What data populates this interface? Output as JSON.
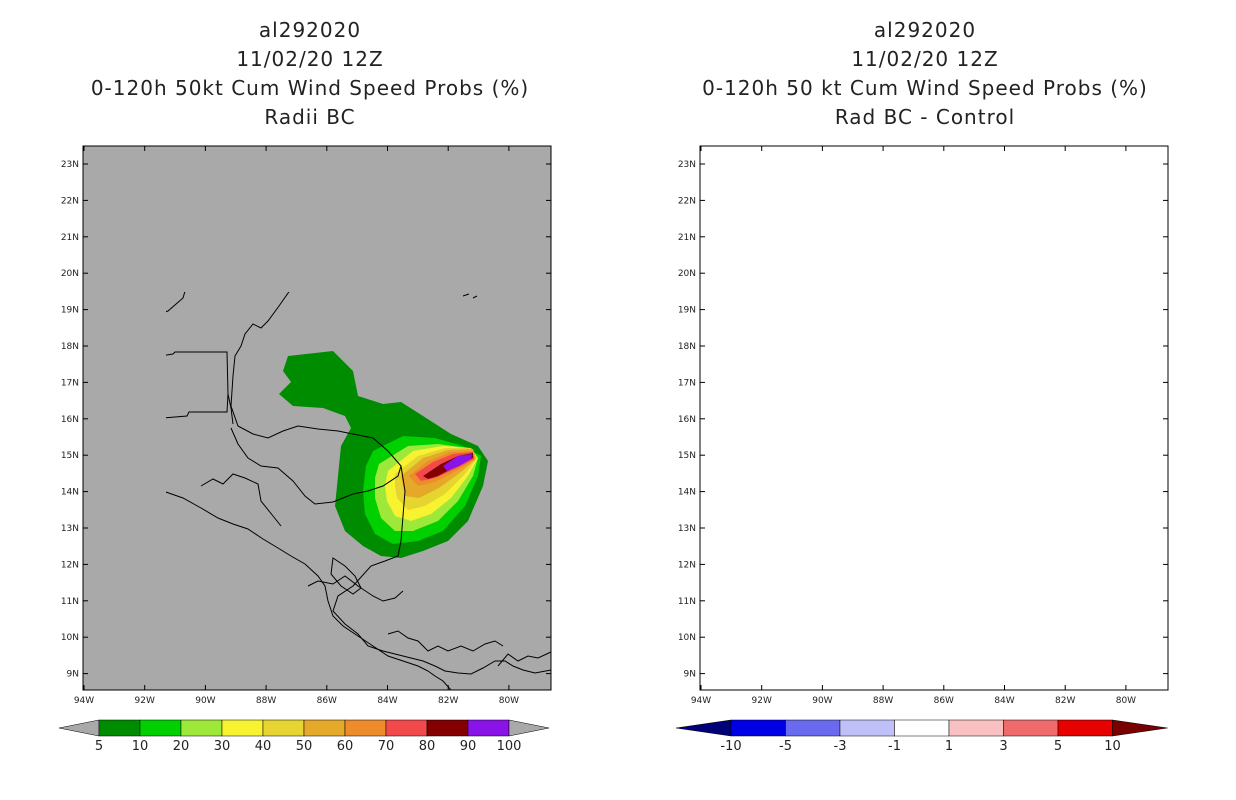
{
  "left_panel": {
    "storm_id": "al292020",
    "datetime": "11/02/20 12Z",
    "title": "0-120h 50kt Cum Wind Speed Probs (%)",
    "subtitle": "Radii BC",
    "background_color": "#a9a9a9",
    "colorbar": {
      "labels": [
        "5",
        "10",
        "20",
        "30",
        "40",
        "50",
        "60",
        "70",
        "80",
        "90",
        "100"
      ],
      "colors": [
        "#008c00",
        "#00d000",
        "#9ee83a",
        "#f7f331",
        "#e6d431",
        "#e5a92a",
        "#ee8b2b",
        "#f24a4a",
        "#840000",
        "#8a13e8"
      ],
      "under_color": "#a9a9a9",
      "over_color": "#a9a9a9"
    }
  },
  "right_panel": {
    "storm_id": "al292020",
    "datetime": "11/02/20 12Z",
    "title": "0-120h 50 kt Cum Wind Speed Probs (%)",
    "subtitle": "Rad BC - Control",
    "background_color": "#ffffff",
    "colorbar": {
      "labels": [
        "-10",
        "-5",
        "-3",
        "-1",
        "1",
        "3",
        "5",
        "10"
      ],
      "colors": [
        "#0000e6",
        "#6a6aef",
        "#c0c0f8",
        "#ffffff",
        "#f8c0c0",
        "#ef6a6a",
        "#e60000"
      ],
      "under_color": "#000078",
      "over_color": "#780000"
    }
  },
  "axes": {
    "lat_labels": [
      "23N",
      "22N",
      "21N",
      "20N",
      "19N",
      "18N",
      "17N",
      "16N",
      "15N",
      "14N",
      "13N",
      "12N",
      "11N",
      "10N",
      "9N"
    ],
    "lon_labels": [
      "94W",
      "92W",
      "90W",
      "88W",
      "86W",
      "84W",
      "82W",
      "80W"
    ]
  }
}
